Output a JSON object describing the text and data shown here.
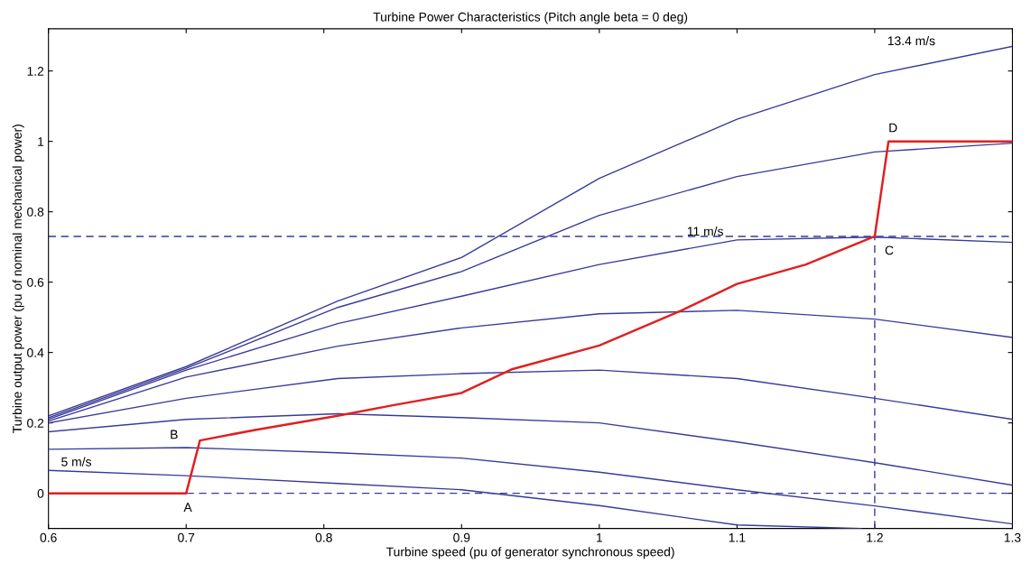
{
  "chart_data": {
    "type": "line",
    "title": "Turbine Power Characteristics (Pitch angle beta = 0 deg)",
    "xlabel": "Turbine speed (pu of generator synchronous speed)",
    "ylabel": "Turbine output power (pu of nominal mechanical power)",
    "xlim": [
      0.6,
      1.3
    ],
    "ylim": [
      -0.1,
      1.32
    ],
    "xticks": [
      0.6,
      0.7,
      0.8,
      0.9,
      1,
      1.1,
      1.2,
      1.3
    ],
    "yticks": [
      0,
      0.2,
      0.4,
      0.6,
      0.8,
      1,
      1.2
    ],
    "grid": false,
    "legend": false,
    "line_style": "solid",
    "series": [
      {
        "color": "#3a3a9a",
        "x": [
          0.6,
          0.7,
          0.81,
          0.9,
          1.0,
          1.1,
          1.2,
          1.3
        ],
        "values": [
          0.22,
          0.36,
          0.546,
          0.67,
          0.895,
          1.063,
          1.19,
          1.27
        ]
      },
      {
        "color": "#3a3a9a",
        "x": [
          0.6,
          0.7,
          0.81,
          0.9,
          1.0,
          1.1,
          1.2,
          1.3
        ],
        "values": [
          0.215,
          0.355,
          0.528,
          0.63,
          0.79,
          0.9,
          0.97,
          0.995
        ]
      },
      {
        "color": "#3a3a9a",
        "x": [
          0.6,
          0.7,
          0.81,
          0.9,
          1.0,
          1.1,
          1.2,
          1.3
        ],
        "values": [
          0.21,
          0.35,
          0.482,
          0.56,
          0.65,
          0.72,
          0.728,
          0.713
        ]
      },
      {
        "color": "#3a3a9a",
        "x": [
          0.6,
          0.7,
          0.81,
          0.9,
          1.0,
          1.1,
          1.2,
          1.3
        ],
        "values": [
          0.205,
          0.33,
          0.418,
          0.47,
          0.51,
          0.52,
          0.495,
          0.443
        ]
      },
      {
        "color": "#3a3a9a",
        "x": [
          0.6,
          0.7,
          0.81,
          0.9,
          1.0,
          1.1,
          1.2,
          1.3
        ],
        "values": [
          0.2,
          0.27,
          0.326,
          0.34,
          0.35,
          0.326,
          0.27,
          0.21
        ]
      },
      {
        "color": "#3a3a9a",
        "x": [
          0.6,
          0.7,
          0.81,
          0.9,
          1.0,
          1.1,
          1.2,
          1.3
        ],
        "values": [
          0.175,
          0.21,
          0.226,
          0.215,
          0.2,
          0.146,
          0.087,
          0.023
        ]
      },
      {
        "color": "#3a3a9a",
        "x": [
          0.6,
          0.7,
          0.81,
          0.9,
          1.0,
          1.1,
          1.2,
          1.3
        ],
        "values": [
          0.125,
          0.13,
          0.115,
          0.1,
          0.06,
          0.01,
          -0.036,
          -0.087
        ]
      },
      {
        "color": "#3a3a9a",
        "x": [
          0.6,
          0.7,
          0.81,
          0.9,
          1.0,
          1.1,
          1.19
        ],
        "values": [
          0.065,
          0.05,
          0.028,
          0.01,
          -0.035,
          -0.09,
          -0.1
        ]
      },
      {
        "color": "#3a3a9a",
        "line_style": "dashed",
        "x": [
          1.2,
          1.2
        ],
        "values": [
          -0.1,
          0.73
        ]
      },
      {
        "color": "#e02020",
        "x": [
          0.6,
          0.7,
          0.71,
          0.75,
          0.81,
          0.85,
          0.9,
          0.937,
          1.0,
          1.06,
          1.1,
          1.15,
          1.2,
          1.21,
          1.3
        ],
        "values": [
          0,
          0,
          0.15,
          0.18,
          0.22,
          0.25,
          0.285,
          0.353,
          0.42,
          0.52,
          0.595,
          0.65,
          0.73,
          1.0,
          1.0
        ]
      }
    ],
    "ref_lines": [
      {
        "axis": "y",
        "value": 0.73,
        "color": "#3a3a9a",
        "line_style": "dashed"
      },
      {
        "axis": "y",
        "value": 0,
        "color": "#3a3a9a",
        "line_style": "dashed"
      }
    ],
    "annotations": [
      {
        "text": "13.4 m/s",
        "x": 1.2,
        "y": 1.19
      },
      {
        "text": "11 m/s",
        "x": 1.1,
        "y": 0.72
      },
      {
        "text": "5 m/s",
        "x": 0.6,
        "y": 0.065
      },
      {
        "text": "A",
        "x": 0.7,
        "y": 0
      },
      {
        "text": "B",
        "x": 0.71,
        "y": 0.15
      },
      {
        "text": "C",
        "x": 1.2,
        "y": 0.73
      },
      {
        "text": "D",
        "x": 1.21,
        "y": 1.0
      }
    ]
  }
}
